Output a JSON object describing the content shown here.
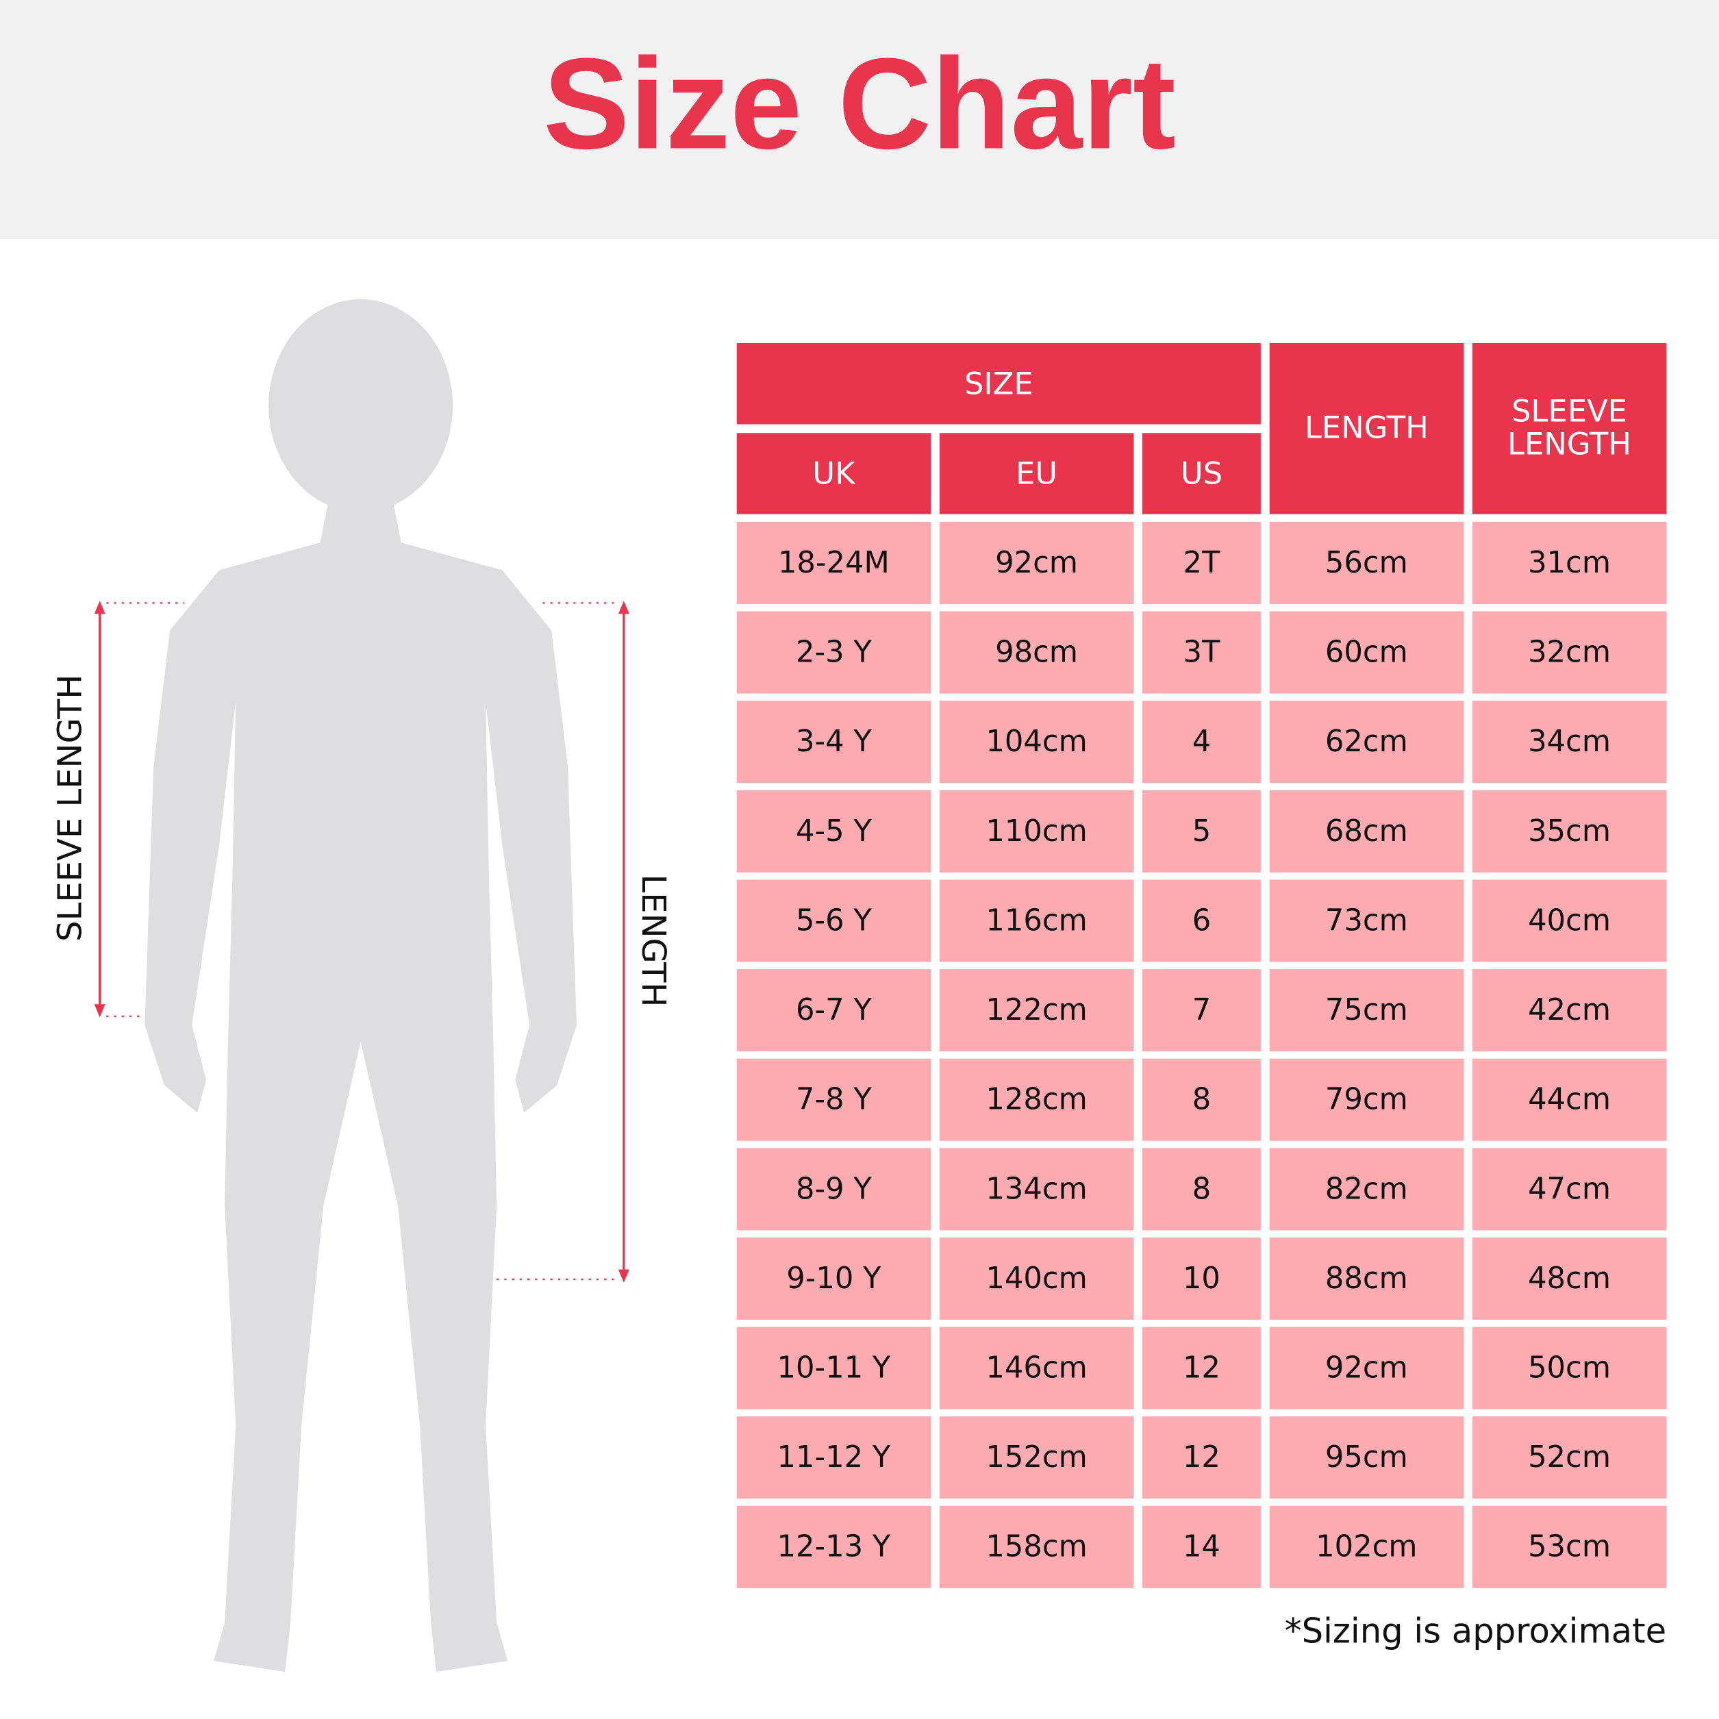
{
  "header": {
    "title": "Size Chart"
  },
  "figure": {
    "sleeve_label": "SLEEVE LENGTH",
    "length_label": "LENGTH"
  },
  "table": {
    "group_header": "SIZE",
    "columns": [
      "UK",
      "EU",
      "US",
      "LENGTH",
      "SLEEVE LENGTH"
    ],
    "rows": [
      [
        "18-24M",
        "92cm",
        "2T",
        "56cm",
        "31cm"
      ],
      [
        "2-3 Y",
        "98cm",
        "3T",
        "60cm",
        "32cm"
      ],
      [
        "3-4 Y",
        "104cm",
        "4",
        "62cm",
        "34cm"
      ],
      [
        "4-5 Y",
        "110cm",
        "5",
        "68cm",
        "35cm"
      ],
      [
        "5-6 Y",
        "116cm",
        "6",
        "73cm",
        "40cm"
      ],
      [
        "6-7 Y",
        "122cm",
        "7",
        "75cm",
        "42cm"
      ],
      [
        "7-8 Y",
        "128cm",
        "8",
        "79cm",
        "44cm"
      ],
      [
        "8-9 Y",
        "134cm",
        "8",
        "82cm",
        "47cm"
      ],
      [
        "9-10 Y",
        "140cm",
        "10",
        "88cm",
        "48cm"
      ],
      [
        "10-11 Y",
        "146cm",
        "12",
        "92cm",
        "50cm"
      ],
      [
        "11-12 Y",
        "152cm",
        "12",
        "95cm",
        "52cm"
      ],
      [
        "12-13 Y",
        "158cm",
        "14",
        "102cm",
        "53cm"
      ]
    ]
  },
  "footnote": "*Sizing is approximate"
}
